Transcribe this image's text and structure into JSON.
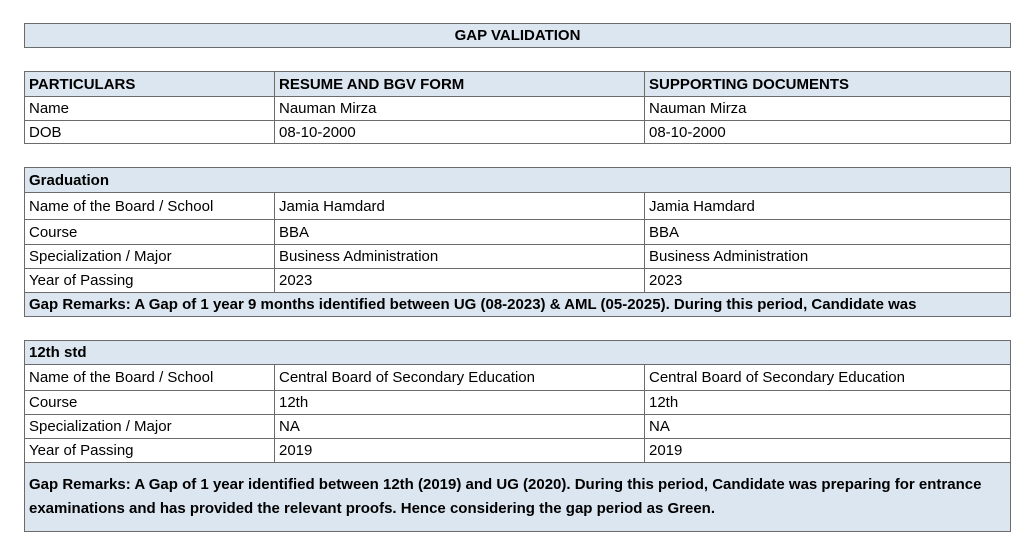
{
  "title": "GAP VALIDATION",
  "identity_table": {
    "header": [
      "PARTICULARS",
      "RESUME AND BGV FORM",
      "SUPPORTING DOCUMENTS"
    ],
    "rows": [
      [
        "Name",
        "Nauman Mirza",
        "Nauman Mirza"
      ],
      [
        "DOB",
        "08-10-2000",
        "08-10-2000"
      ]
    ]
  },
  "sections": [
    {
      "heading": "Graduation",
      "rows": [
        [
          "Name of the Board / School",
          "Jamia Hamdard",
          "Jamia Hamdard"
        ],
        [
          "Course",
          "BBA",
          "BBA"
        ],
        [
          "Specialization / Major",
          "Business Administration",
          "Business Administration"
        ],
        [
          "Year of Passing",
          "2023",
          "2023"
        ]
      ],
      "remarks": "Gap Remarks: A  Gap of 1 year 9 months identified between UG (08-2023) & AML (05-2025). During this period, Candidate was"
    },
    {
      "heading": "12th std",
      "rows": [
        [
          "Name of the Board / School",
          "Central Board of Secondary Education",
          "Central Board of Secondary Education"
        ],
        [
          "Course",
          "12th",
          "12th"
        ],
        [
          "Specialization / Major",
          "NA",
          "NA"
        ],
        [
          "Year of Passing",
          "2019",
          "2019"
        ]
      ],
      "remarks": "Gap Remarks: A Gap of 1 year identified between 12th (2019) and UG (2020). During this period, Candidate was preparing for entrance examinations and has provided the relevant proofs. Hence considering the gap period as Green."
    }
  ]
}
